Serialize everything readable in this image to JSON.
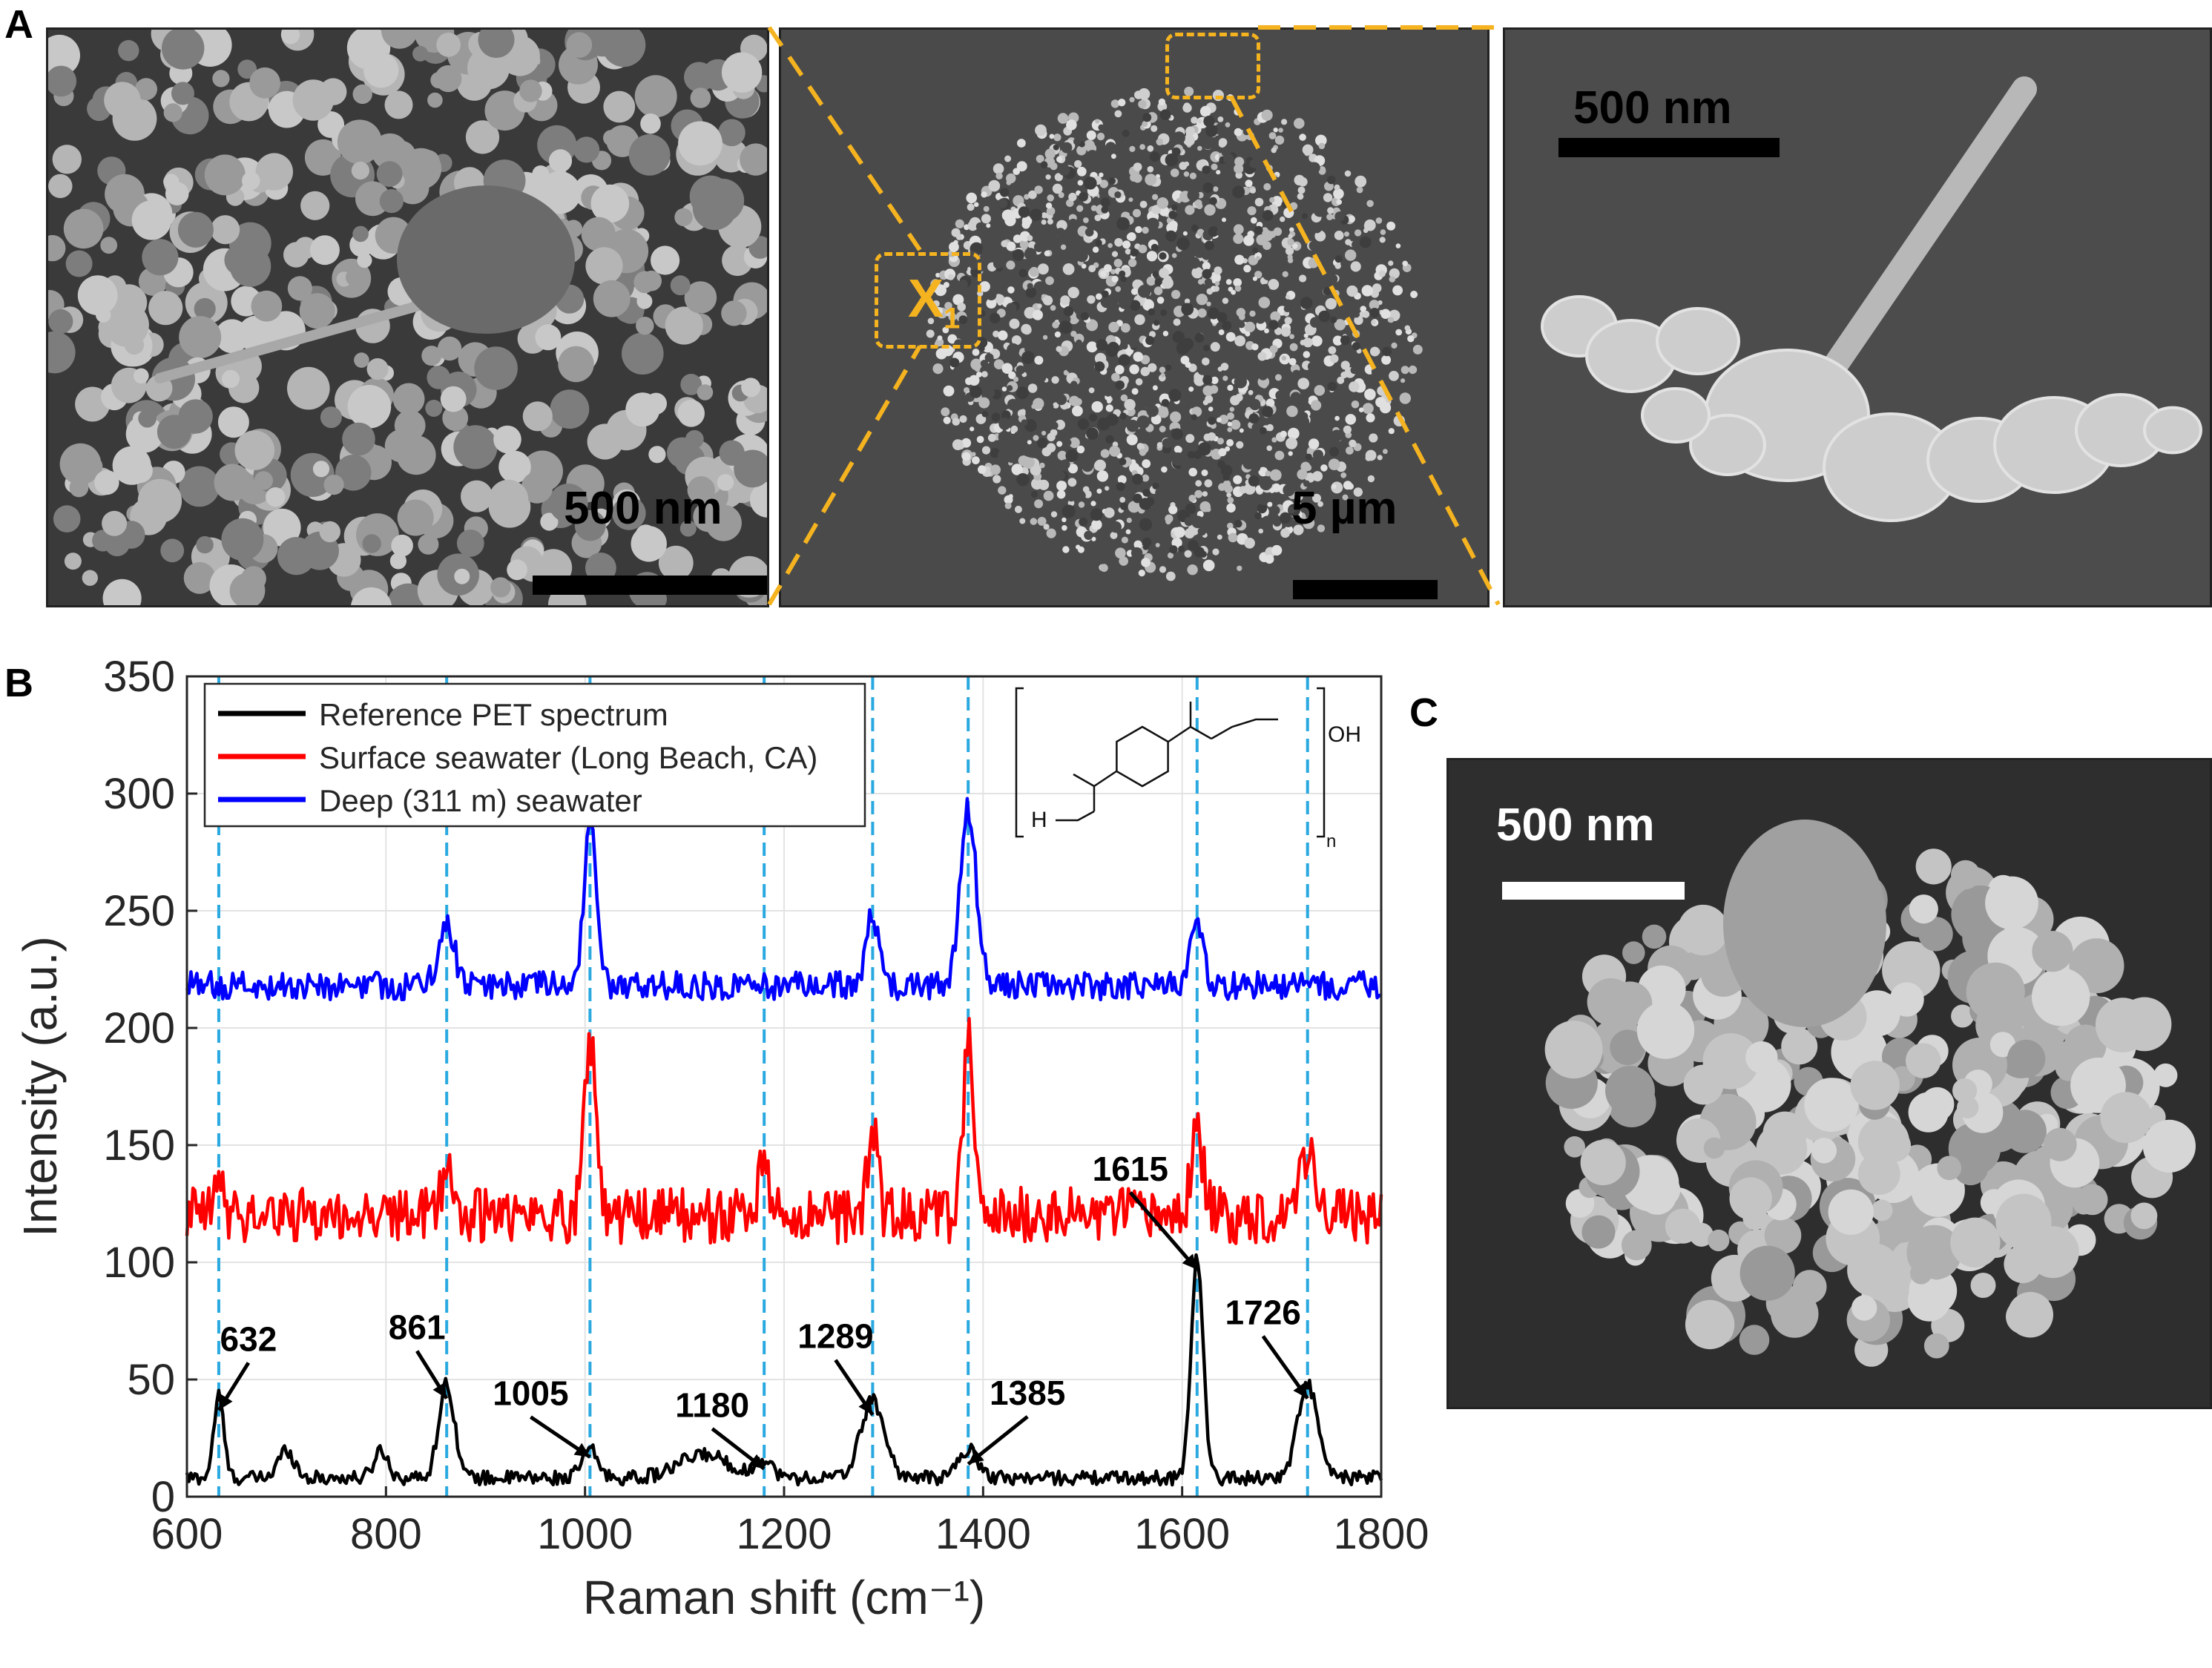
{
  "panels": {
    "a": {
      "label": "A",
      "left_scale": "500 nm",
      "mid_scale": "5 µm",
      "mid_marker": "X",
      "mid_marker_sub": "1",
      "right_scale": "500 nm"
    },
    "b": {
      "label": "B"
    },
    "c": {
      "label": "C",
      "scale": "500 nm"
    }
  },
  "colors": {
    "zoom_box": "#f5b320",
    "reference": "#000000",
    "surface": "#ff0000",
    "deep": "#0000ff",
    "peak_line": "#29a9e0",
    "sem_bg": "#4a4a4a"
  },
  "structure_labels": {
    "h": "H",
    "oh": "OH",
    "n": "n"
  },
  "chart_data": {
    "type": "line",
    "xlabel": "Raman shift (cm⁻¹)",
    "ylabel": "Intensity (a.u.)",
    "xlim": [
      600,
      1800
    ],
    "ylim": [
      0,
      350
    ],
    "xticks": [
      600,
      800,
      1000,
      1200,
      1400,
      1600,
      1800
    ],
    "yticks": [
      0,
      50,
      100,
      150,
      200,
      250,
      300,
      350
    ],
    "grid": true,
    "legend_position": "top-left",
    "series": [
      {
        "name": "Reference PET spectrum",
        "color": "#000000",
        "baseline": 8,
        "noise": 3,
        "peaks": [
          [
            632,
            35,
            5
          ],
          [
            700,
            12,
            8
          ],
          [
            795,
            12,
            7
          ],
          [
            861,
            40,
            8
          ],
          [
            1005,
            12,
            8
          ],
          [
            1120,
            10,
            25
          ],
          [
            1180,
            8,
            8
          ],
          [
            1289,
            33,
            12
          ],
          [
            1385,
            12,
            10
          ],
          [
            1615,
            95,
            6
          ],
          [
            1726,
            40,
            10
          ]
        ]
      },
      {
        "name": "Surface seawater (Long Beach, CA)",
        "color": "#ff0000",
        "baseline": 120,
        "noise": 12,
        "peaks": [
          [
            632,
            15,
            4
          ],
          [
            861,
            20,
            6
          ],
          [
            1005,
            75,
            6
          ],
          [
            1180,
            30,
            4
          ],
          [
            1289,
            35,
            5
          ],
          [
            1385,
            75,
            5
          ],
          [
            1615,
            35,
            6
          ],
          [
            1726,
            25,
            10
          ]
        ]
      },
      {
        "name": "Deep (311 m) seawater",
        "color": "#0000ff",
        "baseline": 218,
        "noise": 6,
        "peaks": [
          [
            861,
            25,
            8
          ],
          [
            1005,
            70,
            6
          ],
          [
            1289,
            30,
            6
          ],
          [
            1385,
            75,
            8
          ],
          [
            1615,
            30,
            6
          ]
        ]
      }
    ],
    "peak_lines": [
      632,
      861,
      1005,
      1180,
      1289,
      1385,
      1615,
      1726
    ],
    "annotations": [
      {
        "text": "632",
        "x": 632,
        "y": 35
      },
      {
        "text": "861",
        "x": 861,
        "y": 40
      },
      {
        "text": "1005",
        "x": 1005,
        "y": 15
      },
      {
        "text": "1180",
        "x": 1180,
        "y": 10
      },
      {
        "text": "1289",
        "x": 1289,
        "y": 33
      },
      {
        "text": "1385",
        "x": 1385,
        "y": 12
      },
      {
        "text": "1615",
        "x": 1615,
        "y": 95
      },
      {
        "text": "1726",
        "x": 1726,
        "y": 40
      }
    ]
  }
}
